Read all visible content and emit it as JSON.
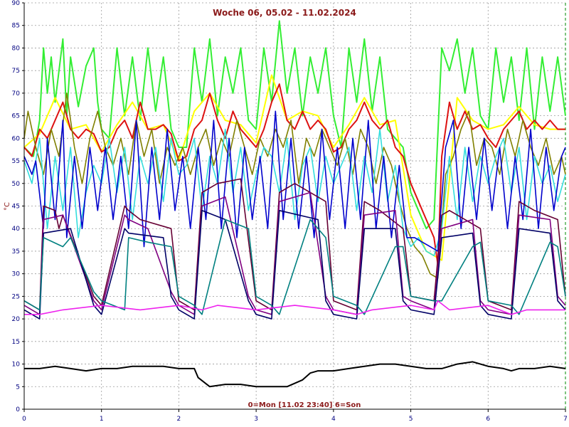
{
  "chart_data": {
    "type": "line",
    "title": "Woche 06, 05.02 - 11.02.2024",
    "caption": "0=Mon [11.02 23:40] 6=Son",
    "ylabel": "°C",
    "xlim": [
      0,
      7
    ],
    "ylim": [
      0,
      90
    ],
    "x_ticks": [
      "0",
      "1",
      "2",
      "3",
      "4",
      "5",
      "6",
      "7"
    ],
    "y_ticks": [
      "0",
      "5",
      "10",
      "15",
      "20",
      "25",
      "30",
      "35",
      "40",
      "45",
      "50",
      "55",
      "60",
      "65",
      "70",
      "75",
      "80",
      "85",
      "90"
    ],
    "grid": true,
    "series": [
      {
        "color": "#33ee33",
        "x": [
          0,
          0.12,
          0.2,
          0.25,
          0.3,
          0.35,
          0.4,
          0.5,
          0.55,
          0.6,
          0.7,
          0.8,
          0.9,
          0.95,
          1.0,
          1.1,
          1.2,
          1.3,
          1.4,
          1.5,
          1.6,
          1.7,
          1.8,
          1.9,
          2.0,
          2.1,
          2.2,
          2.3,
          2.4,
          2.5,
          2.6,
          2.7,
          2.8,
          2.9,
          3.0,
          3.1,
          3.2,
          3.3,
          3.4,
          3.5,
          3.6,
          3.7,
          3.8,
          3.9,
          4.0,
          4.1,
          4.2,
          4.3,
          4.4,
          4.5,
          4.6,
          4.7,
          4.8,
          4.9,
          5.0,
          5.1,
          5.2,
          5.3,
          5.4,
          5.5,
          5.6,
          5.7,
          5.8,
          5.9,
          6.0,
          6.1,
          6.2,
          6.3,
          6.4,
          6.5,
          6.6,
          6.7,
          6.8,
          6.9,
          7.0
        ],
        "values": [
          58,
          56,
          64,
          80,
          70,
          78,
          68,
          82,
          65,
          78,
          67,
          76,
          80,
          68,
          62,
          60,
          80,
          65,
          78,
          64,
          80,
          66,
          78,
          62,
          58,
          58,
          80,
          68,
          82,
          65,
          78,
          70,
          80,
          64,
          62,
          80,
          68,
          86,
          70,
          80,
          65,
          78,
          70,
          80,
          65,
          58,
          80,
          68,
          82,
          66,
          78,
          62,
          60,
          58,
          48,
          44,
          40,
          42,
          80,
          75,
          82,
          70,
          80,
          65,
          62,
          80,
          68,
          78,
          64,
          80,
          62,
          78,
          66,
          78,
          65
        ]
      },
      {
        "color": "#ffff00",
        "x": [
          0,
          0.2,
          0.4,
          0.6,
          0.8,
          1.0,
          1.2,
          1.4,
          1.6,
          1.8,
          2.0,
          2.2,
          2.4,
          2.6,
          2.8,
          3.0,
          3.2,
          3.4,
          3.6,
          3.8,
          4.0,
          4.2,
          4.4,
          4.6,
          4.8,
          5.0,
          5.2,
          5.4,
          5.6,
          5.8,
          6.0,
          6.2,
          6.4,
          6.6,
          6.8,
          7.0
        ],
        "values": [
          58,
          61,
          69,
          62,
          63,
          57,
          63,
          68,
          62,
          63,
          55,
          66,
          70,
          64,
          63,
          59,
          74,
          64,
          66,
          65,
          58,
          63,
          69,
          63,
          64,
          43,
          35,
          33,
          69,
          64,
          62,
          63,
          67,
          63,
          62,
          62
        ]
      },
      {
        "color": "#dd1111",
        "x": [
          0,
          0.1,
          0.2,
          0.3,
          0.4,
          0.5,
          0.6,
          0.7,
          0.8,
          0.9,
          1.0,
          1.1,
          1.2,
          1.3,
          1.4,
          1.5,
          1.6,
          1.7,
          1.8,
          1.9,
          2.0,
          2.1,
          2.2,
          2.3,
          2.4,
          2.5,
          2.6,
          2.7,
          2.8,
          2.9,
          3.0,
          3.1,
          3.2,
          3.3,
          3.4,
          3.5,
          3.6,
          3.7,
          3.8,
          3.9,
          4.0,
          4.1,
          4.2,
          4.3,
          4.4,
          4.5,
          4.6,
          4.7,
          4.8,
          4.9,
          5.0,
          5.1,
          5.2,
          5.3,
          5.35,
          5.4,
          5.5,
          5.6,
          5.7,
          5.8,
          5.9,
          6.0,
          6.1,
          6.2,
          6.3,
          6.4,
          6.5,
          6.6,
          6.7,
          6.8,
          6.9,
          7.0
        ],
        "values": [
          58,
          56,
          62,
          60,
          64,
          68,
          62,
          60,
          62,
          61,
          57,
          58,
          62,
          64,
          60,
          68,
          62,
          62,
          63,
          61,
          55,
          56,
          62,
          64,
          70,
          64,
          60,
          66,
          62,
          60,
          58,
          62,
          68,
          72,
          64,
          62,
          66,
          62,
          64,
          62,
          57,
          58,
          62,
          64,
          68,
          64,
          62,
          64,
          58,
          56,
          50,
          46,
          42,
          38,
          32,
          56,
          68,
          62,
          66,
          62,
          63,
          60,
          58,
          62,
          64,
          66,
          62,
          64,
          62,
          64,
          62,
          62
        ]
      },
      {
        "color": "#808000",
        "x": [
          0,
          0.05,
          0.15,
          0.25,
          0.35,
          0.45,
          0.55,
          0.65,
          0.75,
          0.85,
          0.95,
          1.05,
          1.15,
          1.25,
          1.35,
          1.45,
          1.55,
          1.65,
          1.75,
          1.85,
          1.95,
          2.05,
          2.15,
          2.25,
          2.35,
          2.45,
          2.55,
          2.65,
          2.75,
          2.85,
          2.95,
          3.05,
          3.15,
          3.25,
          3.35,
          3.45,
          3.55,
          3.65,
          3.75,
          3.85,
          3.95,
          4.05,
          4.15,
          4.25,
          4.35,
          4.45,
          4.55,
          4.65,
          4.75,
          4.85,
          4.95,
          5.05,
          5.15,
          5.25,
          5.35,
          5.45,
          5.55,
          5.65,
          5.75,
          5.85,
          5.95,
          6.05,
          6.15,
          6.25,
          6.35,
          6.45,
          6.55,
          6.65,
          6.75,
          6.85,
          6.95,
          7.0
        ],
        "values": [
          60,
          66,
          58,
          52,
          62,
          56,
          70,
          58,
          50,
          60,
          66,
          58,
          54,
          60,
          52,
          64,
          56,
          62,
          50,
          58,
          54,
          58,
          52,
          58,
          62,
          54,
          60,
          56,
          64,
          58,
          52,
          60,
          56,
          62,
          58,
          64,
          50,
          60,
          56,
          62,
          58,
          54,
          60,
          52,
          62,
          58,
          50,
          58,
          54,
          46,
          40,
          36,
          34,
          30,
          29,
          52,
          56,
          62,
          66,
          54,
          60,
          58,
          52,
          62,
          56,
          64,
          58,
          54,
          60,
          52,
          56,
          52
        ]
      },
      {
        "color": "#33dddd",
        "x": [
          0,
          0.1,
          0.2,
          0.3,
          0.4,
          0.5,
          0.6,
          0.7,
          0.8,
          0.9,
          1.0,
          1.1,
          1.2,
          1.3,
          1.4,
          1.5,
          1.6,
          1.7,
          1.8,
          1.9,
          2.0,
          2.1,
          2.2,
          2.3,
          2.4,
          2.5,
          2.6,
          2.7,
          2.8,
          2.9,
          3.0,
          3.1,
          3.2,
          3.3,
          3.4,
          3.5,
          3.6,
          3.7,
          3.8,
          3.9,
          4.0,
          4.1,
          4.2,
          4.3,
          4.4,
          4.5,
          4.6,
          4.7,
          4.8,
          4.9,
          5.0,
          5.1,
          5.2,
          5.3,
          5.4,
          5.5,
          5.6,
          5.7,
          5.8,
          5.9,
          6.0,
          6.1,
          6.2,
          6.3,
          6.4,
          6.5,
          6.6,
          6.7,
          6.8,
          6.9,
          7.0
        ],
        "values": [
          55,
          50,
          60,
          40,
          56,
          44,
          58,
          38,
          48,
          54,
          50,
          60,
          48,
          58,
          42,
          56,
          50,
          58,
          46,
          60,
          52,
          54,
          60,
          44,
          56,
          50,
          62,
          48,
          58,
          44,
          52,
          58,
          56,
          48,
          60,
          42,
          54,
          58,
          46,
          56,
          50,
          54,
          58,
          44,
          56,
          48,
          62,
          46,
          54,
          40,
          36,
          38,
          35,
          34,
          40,
          56,
          42,
          58,
          46,
          56,
          50,
          56,
          60,
          48,
          58,
          42,
          56,
          50,
          54,
          46,
          52
        ]
      },
      {
        "color": "#0000cc",
        "x": [
          0,
          0.1,
          0.15,
          0.25,
          0.3,
          0.4,
          0.5,
          0.55,
          0.65,
          0.75,
          0.85,
          0.95,
          1.05,
          1.15,
          1.25,
          1.35,
          1.45,
          1.55,
          1.65,
          1.75,
          1.85,
          1.95,
          2.05,
          2.15,
          2.25,
          2.35,
          2.45,
          2.55,
          2.65,
          2.75,
          2.85,
          2.95,
          3.05,
          3.15,
          3.25,
          3.35,
          3.45,
          3.55,
          3.65,
          3.75,
          3.85,
          3.95,
          4.05,
          4.15,
          4.25,
          4.35,
          4.45,
          4.55,
          4.65,
          4.75,
          4.85,
          4.95,
          5.05,
          5.15,
          5.25,
          5.35,
          5.45,
          5.55,
          5.65,
          5.75,
          5.85,
          5.95,
          6.05,
          6.15,
          6.25,
          6.35,
          6.45,
          6.55,
          6.65,
          6.75,
          6.85,
          6.95,
          7.0
        ],
        "values": [
          56,
          52,
          55,
          40,
          60,
          42,
          64,
          38,
          56,
          40,
          58,
          44,
          58,
          42,
          56,
          40,
          64,
          36,
          58,
          42,
          62,
          44,
          56,
          40,
          58,
          42,
          64,
          40,
          60,
          38,
          58,
          42,
          56,
          40,
          66,
          42,
          60,
          40,
          56,
          38,
          62,
          42,
          58,
          40,
          60,
          42,
          64,
          40,
          56,
          38,
          54,
          38,
          38,
          37,
          36,
          35,
          58,
          64,
          40,
          58,
          42,
          60,
          44,
          58,
          40,
          56,
          42,
          62,
          40,
          58,
          44,
          56,
          58
        ]
      },
      {
        "color": "#660033",
        "x": [
          0,
          0.2,
          0.25,
          0.4,
          0.45,
          0.5,
          0.9,
          1.0,
          1.3,
          1.35,
          1.5,
          1.9,
          2.0,
          2.2,
          2.3,
          2.5,
          2.8,
          3.0,
          3.2,
          3.3,
          3.5,
          3.9,
          4.0,
          4.3,
          4.4,
          4.6,
          4.9,
          5.0,
          5.3,
          5.4,
          5.5,
          5.9,
          6.0,
          6.3,
          6.4,
          6.6,
          6.9,
          7.0
        ],
        "values": [
          24,
          22,
          45,
          44,
          40,
          43,
          25,
          23,
          45,
          44,
          42,
          40,
          24,
          22,
          48,
          50,
          51,
          24,
          22,
          48,
          50,
          46,
          24,
          22,
          46,
          44,
          40,
          25,
          24,
          43,
          44,
          40,
          24,
          22,
          46,
          44,
          42,
          25
        ]
      },
      {
        "color": "#800080",
        "x": [
          0,
          0.2,
          0.25,
          0.5,
          0.9,
          1.0,
          1.3,
          1.35,
          1.6,
          1.9,
          2.0,
          2.2,
          2.3,
          2.6,
          2.9,
          3.0,
          3.2,
          3.3,
          3.7,
          3.9,
          4.0,
          4.3,
          4.4,
          4.8,
          4.9,
          5.0,
          5.3,
          5.4,
          5.8,
          5.9,
          6.0,
          6.3,
          6.4,
          6.8,
          6.9,
          7.0
        ],
        "values": [
          23,
          21,
          42,
          43,
          24,
          22,
          43,
          42,
          40,
          26,
          23,
          21,
          45,
          47,
          25,
          22,
          21,
          46,
          48,
          25,
          22,
          21,
          43,
          44,
          25,
          24,
          22,
          40,
          42,
          24,
          22,
          21,
          43,
          42,
          25,
          23
        ]
      },
      {
        "color": "#000066",
        "x": [
          0,
          0.2,
          0.25,
          0.6,
          0.9,
          1.0,
          1.3,
          1.35,
          1.8,
          1.9,
          2.0,
          2.2,
          2.3,
          2.6,
          2.9,
          3.0,
          3.2,
          3.3,
          3.8,
          3.9,
          4.0,
          4.3,
          4.4,
          4.8,
          4.9,
          5.0,
          5.3,
          5.4,
          5.8,
          5.9,
          6.0,
          6.3,
          6.4,
          6.8,
          6.9,
          7.0
        ],
        "values": [
          22,
          20,
          39,
          40,
          23,
          21,
          40,
          39,
          38,
          25,
          22,
          20,
          44,
          42,
          24,
          21,
          20,
          44,
          42,
          24,
          21,
          20,
          40,
          40,
          24,
          22,
          21,
          38,
          39,
          23,
          21,
          20,
          40,
          39,
          24,
          22
        ]
      },
      {
        "color": "#008080",
        "x": [
          0,
          0.2,
          0.25,
          0.5,
          0.6,
          0.9,
          1.0,
          1.3,
          1.35,
          1.6,
          1.9,
          2.0,
          2.2,
          2.3,
          2.6,
          2.9,
          3.0,
          3.2,
          3.3,
          3.7,
          3.9,
          4.0,
          4.3,
          4.4,
          4.8,
          4.9,
          5.0,
          5.3,
          5.4,
          5.8,
          5.9,
          6.0,
          6.3,
          6.4,
          6.8,
          6.9,
          7.0
        ],
        "values": [
          24,
          22,
          38,
          36,
          38,
          26,
          24,
          22,
          38,
          37,
          36,
          25,
          23,
          21,
          42,
          40,
          25,
          23,
          21,
          42,
          38,
          25,
          23,
          21,
          36,
          36,
          25,
          24,
          24,
          36,
          37,
          24,
          23,
          21,
          37,
          36,
          25
        ]
      },
      {
        "color": "#ee22ee",
        "x": [
          0,
          0.2,
          0.5,
          1.0,
          1.5,
          2.0,
          2.3,
          2.5,
          3.0,
          3.5,
          4.0,
          4.3,
          4.5,
          5.0,
          5.3,
          5.35,
          5.5,
          6.0,
          6.3,
          6.5,
          7.0
        ],
        "values": [
          21,
          21,
          22,
          23,
          22,
          23,
          22,
          23,
          22,
          23,
          22,
          21,
          22,
          23,
          22,
          24,
          22,
          23,
          21,
          22,
          22
        ]
      },
      {
        "color": "#000000",
        "x": [
          0,
          0.2,
          0.4,
          0.6,
          0.8,
          1.0,
          1.2,
          1.4,
          1.6,
          1.8,
          2.0,
          2.2,
          2.25,
          2.4,
          2.6,
          2.8,
          3.0,
          3.2,
          3.4,
          3.6,
          3.7,
          3.8,
          4.0,
          4.2,
          4.4,
          4.6,
          4.8,
          5.0,
          5.2,
          5.4,
          5.6,
          5.8,
          6.0,
          6.2,
          6.3,
          6.4,
          6.6,
          6.8,
          7.0
        ],
        "values": [
          9,
          9,
          9.5,
          9,
          8.5,
          9,
          9,
          9.5,
          9.5,
          9.5,
          9,
          9,
          7,
          5,
          5.5,
          5.5,
          5,
          5,
          5,
          6.5,
          8,
          8.5,
          8.5,
          9,
          9.5,
          10,
          10,
          9.5,
          9,
          9,
          10,
          10.5,
          9.5,
          9,
          8.5,
          9,
          9,
          9.5,
          9
        ]
      }
    ]
  }
}
